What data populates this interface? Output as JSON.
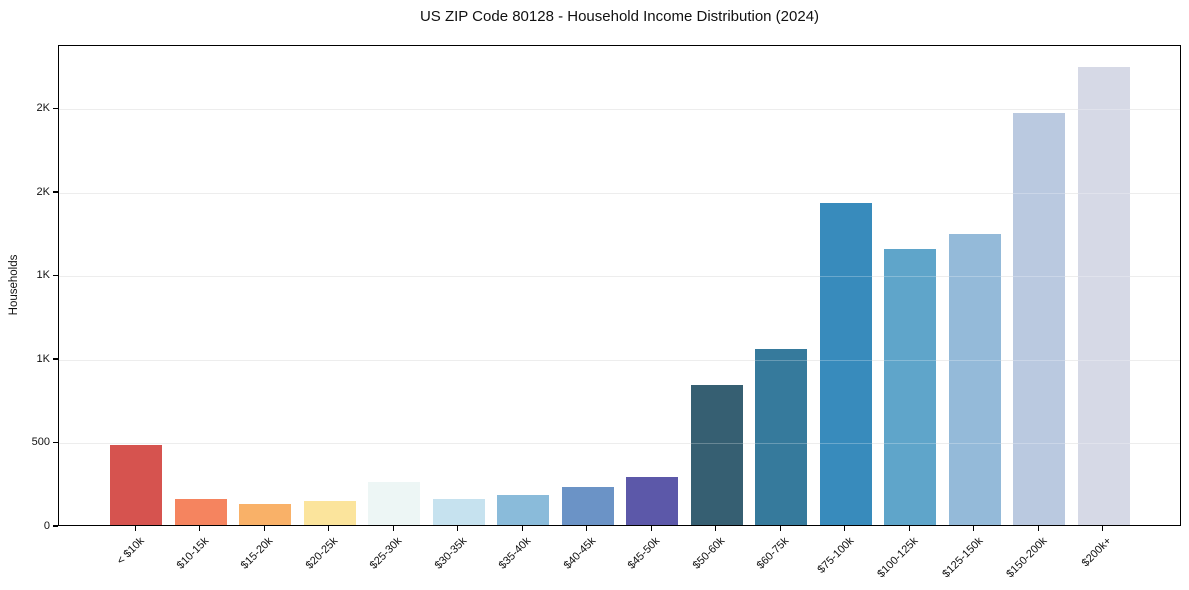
{
  "chart_data": {
    "type": "bar",
    "title": "US ZIP Code 80128 - Household Income Distribution (2024)",
    "xlabel": "",
    "ylabel": "Households",
    "categories": [
      "< $10k",
      "$10-15k",
      "$15-20k",
      "$20-25k",
      "$25-30k",
      "$30-35k",
      "$35-40k",
      "$40-45k",
      "$45-50k",
      "$50-60k",
      "$60-75k",
      "$75-100k",
      "$100-125k",
      "$125-150k",
      "$150-200k",
      "$200k+"
    ],
    "values": [
      480,
      157,
      123,
      143,
      255,
      155,
      180,
      225,
      290,
      840,
      1055,
      1930,
      1650,
      1745,
      2465,
      2740
    ],
    "bar_colors": [
      "#d6534f",
      "#f5845f",
      "#f9b168",
      "#fbe49c",
      "#edf6f5",
      "#c6e2ef",
      "#8abbda",
      "#6b93c6",
      "#5c58a9",
      "#365f72",
      "#367a9c",
      "#388bbc",
      "#5fa5ca",
      "#94bad9",
      "#bac9e0",
      "#d6d9e6"
    ],
    "ylim": [
      0,
      2880
    ],
    "yticks": {
      "values": [
        0,
        500,
        1000,
        1500,
        2000,
        2500
      ],
      "labels": [
        "0",
        "500",
        "1K",
        "1K",
        "2K",
        "2K"
      ]
    },
    "grid": true,
    "legend_position": "none",
    "x_tick_rotation_deg": 45,
    "frame_color": "#000000",
    "gridline_color": "#e7e7e7",
    "background_color": "#ffffff"
  }
}
